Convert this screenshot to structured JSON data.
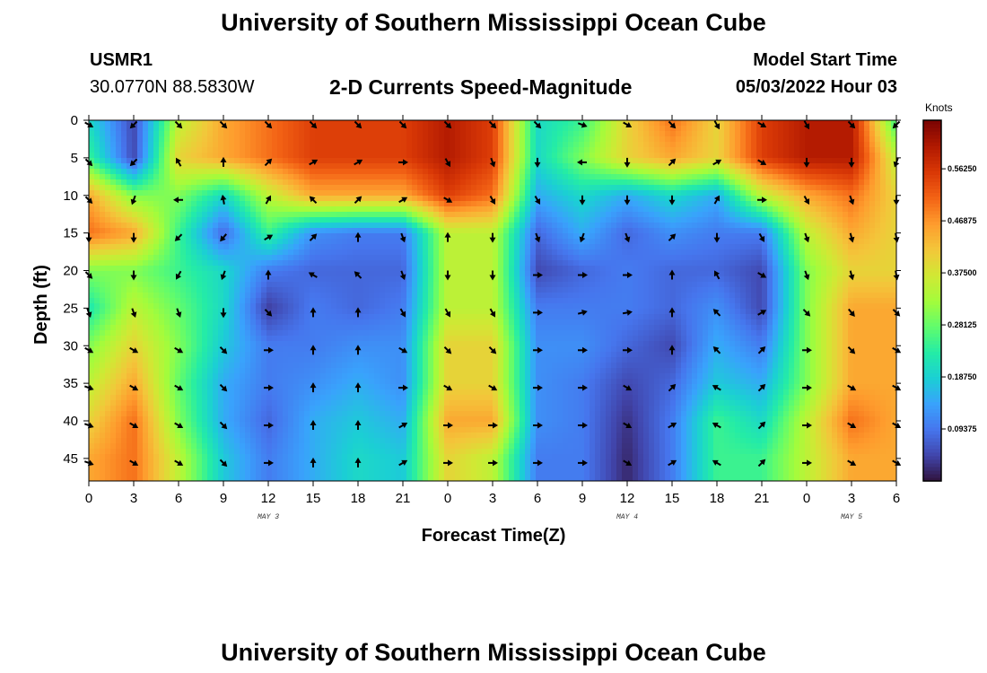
{
  "page": {
    "title_top": "University of Southern Mississippi Ocean Cube",
    "title_bottom": "University of Southern Mississippi Ocean Cube",
    "station_id": "USMR1",
    "station_coords": "30.0770N  88.5830W",
    "plot_title": "2-D Currents Speed-Magnitude",
    "model_start_label": "Model Start Time",
    "model_start_value": "05/03/2022 Hour 03"
  },
  "colors": {
    "arrow": "#000000",
    "colormap": [
      "#30123b",
      "#4145ab",
      "#4675ed",
      "#39a2fc",
      "#1bcfd4",
      "#24eca6",
      "#61fc6c",
      "#a4fc3b",
      "#d1e834",
      "#f3c63a",
      "#fe9b2d",
      "#f36315",
      "#d93806",
      "#b11901",
      "#7a0402"
    ]
  },
  "chart_data": {
    "type": "heatmap",
    "xlabel": "Forecast Time(Z)",
    "ylabel": "Depth (ft)",
    "x_tick_labels": [
      "0",
      "3",
      "6",
      "9",
      "12",
      "15",
      "18",
      "21",
      "0",
      "3",
      "6",
      "9",
      "12",
      "15",
      "18",
      "21",
      "0",
      "3",
      "6"
    ],
    "x_range_hours": [
      0,
      54
    ],
    "day_labels": [
      {
        "label": "MAY 3",
        "hour": 12
      },
      {
        "label": "MAY 4",
        "hour": 36
      },
      {
        "label": "MAY 5",
        "hour": 51
      }
    ],
    "y_ticks": [
      0,
      5,
      10,
      15,
      20,
      25,
      30,
      35,
      40,
      45
    ],
    "y_range": [
      0,
      48
    ],
    "y_inverted": true,
    "colorbar": {
      "title": "Knots",
      "ticks": [
        "0.09375",
        "0.18750",
        "0.28125",
        "0.37500",
        "0.46875",
        "0.56250"
      ],
      "range": [
        0,
        0.65
      ]
    },
    "speed_grid": {
      "units": "knots",
      "hours": [
        0,
        3,
        6,
        9,
        12,
        15,
        18,
        21,
        24,
        27,
        30,
        33,
        36,
        39,
        42,
        45,
        48,
        51,
        54
      ],
      "depths_ft": [
        0,
        5,
        10,
        15,
        20,
        25,
        30,
        35,
        40,
        45
      ],
      "values": [
        [
          0.2,
          0.05,
          0.35,
          0.45,
          0.5,
          0.55,
          0.55,
          0.55,
          0.6,
          0.55,
          0.2,
          0.25,
          0.4,
          0.5,
          0.4,
          0.55,
          0.6,
          0.6,
          0.25
        ],
        [
          0.25,
          0.05,
          0.4,
          0.45,
          0.5,
          0.55,
          0.55,
          0.55,
          0.6,
          0.55,
          0.2,
          0.3,
          0.4,
          0.45,
          0.4,
          0.55,
          0.6,
          0.6,
          0.35
        ],
        [
          0.45,
          0.3,
          0.3,
          0.2,
          0.35,
          0.45,
          0.45,
          0.45,
          0.55,
          0.5,
          0.15,
          0.2,
          0.15,
          0.2,
          0.15,
          0.35,
          0.45,
          0.5,
          0.4
        ],
        [
          0.5,
          0.45,
          0.25,
          0.08,
          0.25,
          0.12,
          0.1,
          0.1,
          0.35,
          0.35,
          0.08,
          0.15,
          0.08,
          0.12,
          0.1,
          0.1,
          0.35,
          0.45,
          0.4
        ],
        [
          0.3,
          0.3,
          0.25,
          0.2,
          0.1,
          0.08,
          0.08,
          0.08,
          0.35,
          0.35,
          0.05,
          0.08,
          0.1,
          0.08,
          0.08,
          0.05,
          0.3,
          0.4,
          0.4
        ],
        [
          0.22,
          0.35,
          0.28,
          0.2,
          0.04,
          0.1,
          0.08,
          0.1,
          0.35,
          0.35,
          0.1,
          0.1,
          0.1,
          0.08,
          0.12,
          0.05,
          0.3,
          0.45,
          0.45
        ],
        [
          0.3,
          0.4,
          0.3,
          0.18,
          0.1,
          0.1,
          0.12,
          0.12,
          0.4,
          0.4,
          0.12,
          0.12,
          0.08,
          0.05,
          0.15,
          0.1,
          0.3,
          0.45,
          0.45
        ],
        [
          0.35,
          0.45,
          0.28,
          0.15,
          0.1,
          0.12,
          0.15,
          0.12,
          0.4,
          0.4,
          0.12,
          0.1,
          0.05,
          0.08,
          0.18,
          0.15,
          0.3,
          0.45,
          0.45
        ],
        [
          0.4,
          0.5,
          0.3,
          0.15,
          0.08,
          0.15,
          0.18,
          0.15,
          0.45,
          0.45,
          0.12,
          0.1,
          0.03,
          0.1,
          0.25,
          0.2,
          0.35,
          0.5,
          0.45
        ],
        [
          0.45,
          0.5,
          0.35,
          0.18,
          0.1,
          0.15,
          0.2,
          0.18,
          0.4,
          0.35,
          0.1,
          0.1,
          0.02,
          0.1,
          0.25,
          0.25,
          0.35,
          0.45,
          0.45
        ]
      ]
    },
    "direction_grid": {
      "units": "degrees (0 = up, clockwise)",
      "hours": [
        0,
        3,
        6,
        9,
        12,
        15,
        18,
        21,
        24,
        27,
        30,
        33,
        36,
        39,
        42,
        45,
        48,
        51,
        54
      ],
      "depths_ft": [
        0,
        5,
        10,
        15,
        20,
        25,
        30,
        35,
        40,
        45
      ],
      "values": [
        [
          120,
          225,
          135,
          135,
          135,
          135,
          135,
          135,
          135,
          135,
          135,
          110,
          120,
          135,
          150,
          120,
          150,
          135,
          225
        ],
        [
          135,
          225,
          330,
          0,
          45,
          60,
          60,
          90,
          150,
          160,
          180,
          270,
          180,
          45,
          60,
          120,
          180,
          180,
          200
        ],
        [
          135,
          200,
          270,
          350,
          30,
          315,
          45,
          60,
          120,
          150,
          150,
          180,
          180,
          180,
          30,
          90,
          150,
          160,
          180
        ],
        [
          180,
          180,
          225,
          220,
          60,
          45,
          0,
          160,
          0,
          180,
          160,
          200,
          160,
          45,
          180,
          150,
          160,
          165,
          170
        ],
        [
          135,
          180,
          210,
          200,
          0,
          300,
          315,
          160,
          180,
          180,
          90,
          90,
          90,
          0,
          330,
          120,
          160,
          165,
          170
        ],
        [
          160,
          160,
          160,
          180,
          135,
          0,
          0,
          150,
          150,
          150,
          90,
          75,
          80,
          0,
          315,
          60,
          135,
          140,
          135
        ],
        [
          120,
          120,
          120,
          135,
          90,
          0,
          0,
          120,
          135,
          135,
          90,
          90,
          90,
          0,
          315,
          45,
          90,
          135,
          120
        ],
        [
          110,
          120,
          120,
          135,
          90,
          0,
          0,
          90,
          120,
          120,
          90,
          90,
          120,
          45,
          300,
          45,
          90,
          120,
          120
        ],
        [
          110,
          120,
          120,
          135,
          90,
          0,
          0,
          60,
          90,
          90,
          90,
          90,
          120,
          60,
          300,
          45,
          90,
          120,
          120
        ],
        [
          110,
          120,
          120,
          135,
          90,
          0,
          0,
          60,
          90,
          90,
          90,
          90,
          120,
          60,
          300,
          45,
          90,
          120,
          120
        ]
      ]
    }
  }
}
